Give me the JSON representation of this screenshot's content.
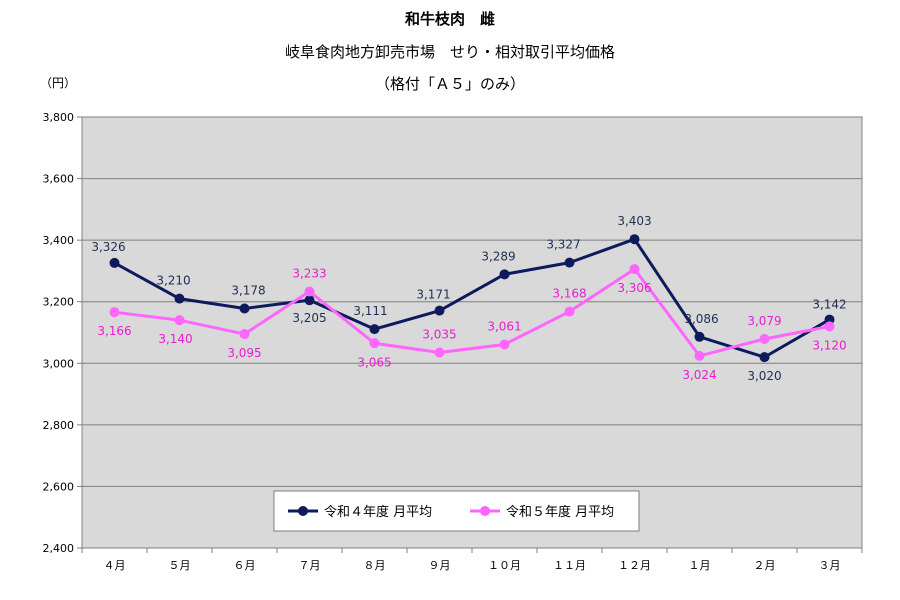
{
  "chart_data": {
    "type": "line",
    "title": "和牛枝肉　雌",
    "subtitle": "岐阜食肉地方卸売市場　せり・相対取引平均価格",
    "subtitle2": "（格付「Ａ５」のみ）",
    "ylabel": "（円）",
    "xlabel": "",
    "categories": [
      "４月",
      "５月",
      "６月",
      "７月",
      "８月",
      "９月",
      "１０月",
      "１１月",
      "１２月",
      "１月",
      "２月",
      "３月"
    ],
    "ylim": [
      2400,
      3800
    ],
    "yticks": [
      2400,
      2600,
      2800,
      3000,
      3200,
      3400,
      3600,
      3800
    ],
    "ytick_labels": [
      "2,400",
      "2,600",
      "2,800",
      "3,000",
      "3,200",
      "3,400",
      "3,600",
      "3,800"
    ],
    "grid": true,
    "legend_position": "bottom-center",
    "series": [
      {
        "name": "令和４年度 月平均",
        "color": "#0d1a5c",
        "values": [
          3326,
          3210,
          3178,
          3205,
          3111,
          3171,
          3289,
          3327,
          3403,
          3086,
          3020,
          3142
        ],
        "labels": [
          "3,326",
          "3,210",
          "3,178",
          "3,205",
          "3,111",
          "3,171",
          "3,289",
          "3,327",
          "3,403",
          "3,086",
          "3,020",
          "3,142"
        ]
      },
      {
        "name": "令和５年度 月平均",
        "color": "#ff66ff",
        "values": [
          3166,
          3140,
          3095,
          3233,
          3065,
          3035,
          3061,
          3168,
          3306,
          3024,
          3079,
          3120
        ],
        "labels": [
          "3,166",
          "3,140",
          "3,095",
          "3,233",
          "3,065",
          "3,035",
          "3,061",
          "3,168",
          "3,306",
          "3,024",
          "3,079",
          "3,120"
        ]
      }
    ]
  },
  "colors": {
    "plot_background": "#d9d9d9",
    "label_series1": "#1f2f55",
    "label_series2": "#e81ed0"
  }
}
